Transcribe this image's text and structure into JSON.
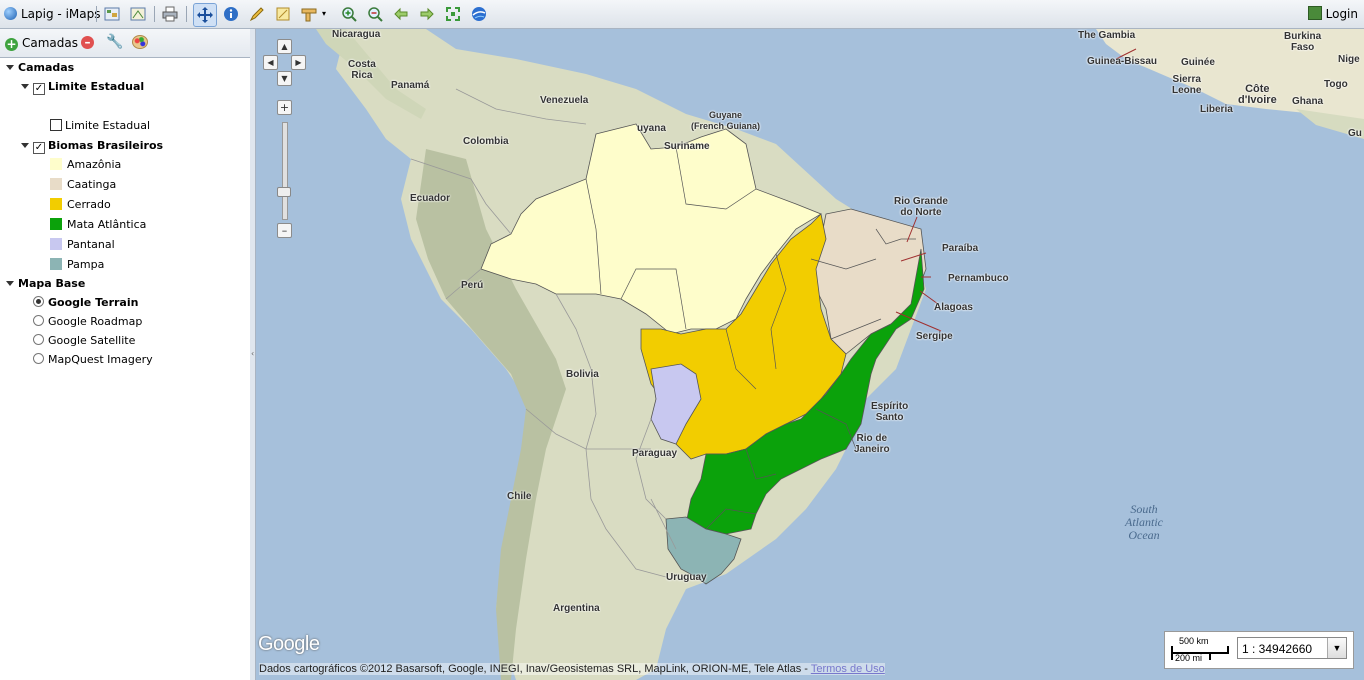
{
  "app": {
    "title": "Lapig - iMaps",
    "login_label": "Login"
  },
  "toolbar": {
    "icons": [
      "layers-icon",
      "grid-icon",
      "print-icon",
      "pan-icon",
      "info-icon",
      "edit-icon",
      "measure-area-icon",
      "measure-line-icon",
      "zoom-in-icon",
      "zoom-out-icon",
      "back-icon",
      "forward-icon",
      "full-extent-icon",
      "google-earth-icon"
    ]
  },
  "panel": {
    "add_label": "Camadas",
    "tree": {
      "root": "Camadas",
      "limite": {
        "label": "Limite Estadual",
        "legend": "Limite Estadual"
      },
      "biomas": {
        "label": "Biomas Brasileiros",
        "items": [
          {
            "label": "Amazônia",
            "color": "#fefdcb"
          },
          {
            "label": "Caatinga",
            "color": "#e8dcc8"
          },
          {
            "label": "Cerrado",
            "color": "#f2cd00"
          },
          {
            "label": "Mata Atlântica",
            "color": "#0ba20b"
          },
          {
            "label": "Pantanal",
            "color": "#c8c8f0"
          },
          {
            "label": "Pampa",
            "color": "#8cb4b4"
          }
        ]
      },
      "base": {
        "label": "Mapa Base",
        "options": [
          {
            "label": "Google Terrain",
            "selected": true
          },
          {
            "label": "Google Roadmap",
            "selected": false
          },
          {
            "label": "Google Satellite",
            "selected": false
          },
          {
            "label": "MapQuest Imagery",
            "selected": false
          }
        ]
      }
    }
  },
  "map": {
    "labels": {
      "nicaragua": "Nicaragua",
      "costa_rica": "Costa\nRica",
      "panama": "Panamá",
      "venezuela": "Venezuela",
      "guyana": "uyana",
      "guyane": "Guyane\n(French Guiana)",
      "suriname": "Suriname",
      "colombia": "Colombia",
      "ecuador": "Ecuador",
      "peru": "Perú",
      "bolivia": "Bolivia",
      "paraguay": "Paraguay",
      "chile": "Chile",
      "uruguay": "Uruguay",
      "argentina": "Argentina",
      "rgn": "Rio Grande\ndo Norte",
      "paraiba": "Paraíba",
      "pernambuco": "Pernambuco",
      "alagoas": "Alagoas",
      "sergipe": "Sergipe",
      "espirito_santo": "Espírito\nSanto",
      "rio": "Rio de\nJaneiro",
      "gambia": "The Gambia",
      "guinea_bissau": "Guinea-Bissau",
      "guinee": "Guinée",
      "burkina": "Burkina\nFaso",
      "niger": "Nige",
      "sierra_leone": "Sierra\nLeone",
      "cote": "Côte\nd'Ivoire",
      "ghana": "Ghana",
      "togo": "Togo",
      "liberia": "Liberia",
      "gu": "Gu",
      "ocean": "South\nAtlantic\nOcean"
    },
    "google": "Google",
    "attribution": "Dados cartográficos ©2012 Basarsoft, Google, INEGI, Inav/Geosistemas SRL, MapLink, ORION-ME, Tele Atlas - ",
    "terms": "Termos de Uso",
    "scale": {
      "km": "500 km",
      "mi": "200 mi",
      "ratio": "1 : 34942660"
    }
  }
}
